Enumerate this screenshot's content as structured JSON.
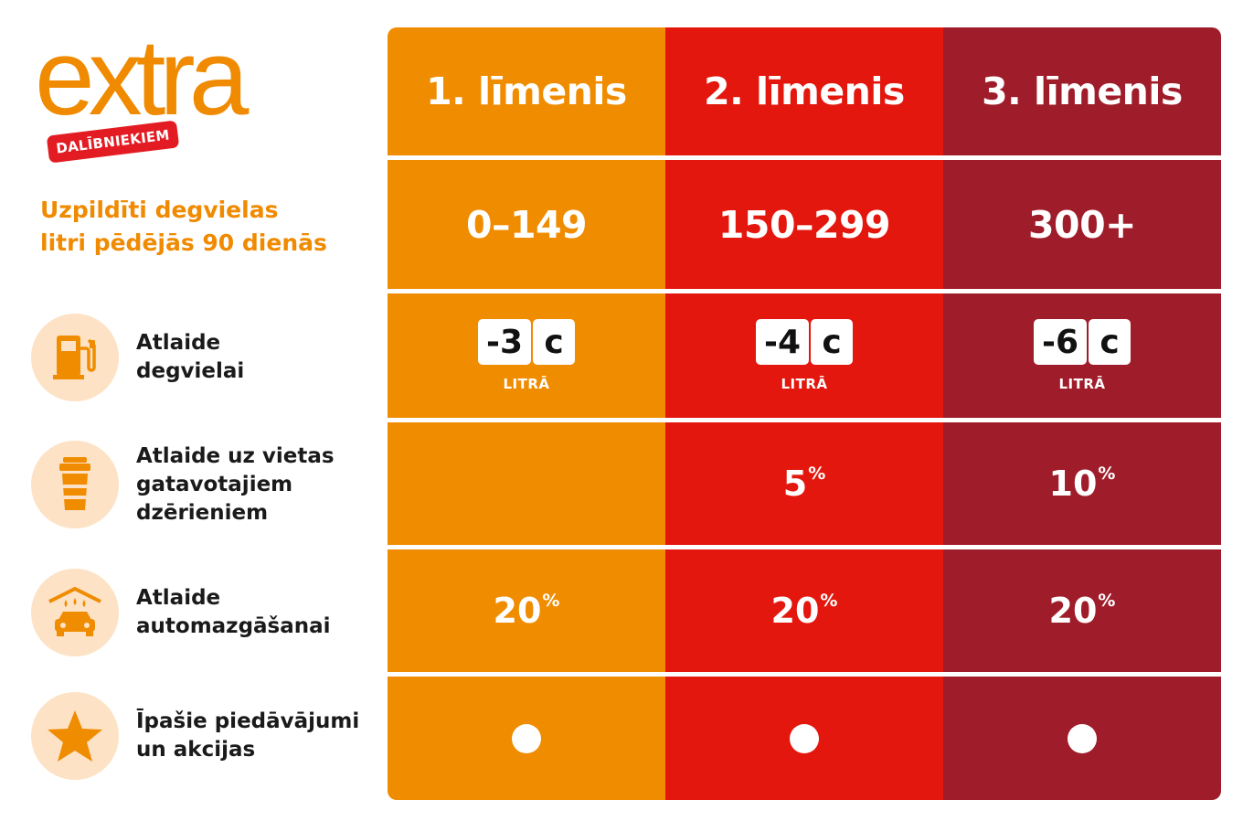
{
  "logo": {
    "word": "extra",
    "badge": "DALĪBNIEKIEM"
  },
  "litres_label": {
    "line1": "Uzpildīti degvielas",
    "line2": "litri pēdējās 90 dienās"
  },
  "rows": [
    {
      "icon": "fuel-pump-icon",
      "lines": [
        "Atlaide",
        "degvielai"
      ]
    },
    {
      "icon": "coffee-cup-icon",
      "lines": [
        "Atlaide uz vietas",
        "gatavotajiem",
        "dzērieniem"
      ]
    },
    {
      "icon": "car-wash-icon",
      "lines": [
        "Atlaide",
        "automazgāšanai"
      ]
    },
    {
      "icon": "star-icon",
      "lines": [
        "Īpašie piedāvājumi",
        "un akcijas"
      ]
    }
  ],
  "levels": [
    {
      "name": "1. līmenis",
      "range": "0–149",
      "fuel_discount": "-3",
      "fuel_unit": "c",
      "fuel_per": "LITRĀ",
      "drinks": "",
      "drinks_unit": "",
      "wash": "20",
      "wash_unit": "%"
    },
    {
      "name": "2. līmenis",
      "range": "150–299",
      "fuel_discount": "-4",
      "fuel_unit": "c",
      "fuel_per": "LITRĀ",
      "drinks": "5",
      "drinks_unit": "%",
      "wash": "20",
      "wash_unit": "%"
    },
    {
      "name": "3. līmenis",
      "range": "300+",
      "fuel_discount": "-6",
      "fuel_unit": "c",
      "fuel_per": "LITRĀ",
      "drinks": "10",
      "drinks_unit": "%",
      "wash": "20",
      "wash_unit": "%"
    }
  ],
  "colors": {
    "orange": "#f08c00",
    "red": "#e3170d",
    "dark_red": "#9f1d2a",
    "icon_bg": "#fde2c5"
  }
}
